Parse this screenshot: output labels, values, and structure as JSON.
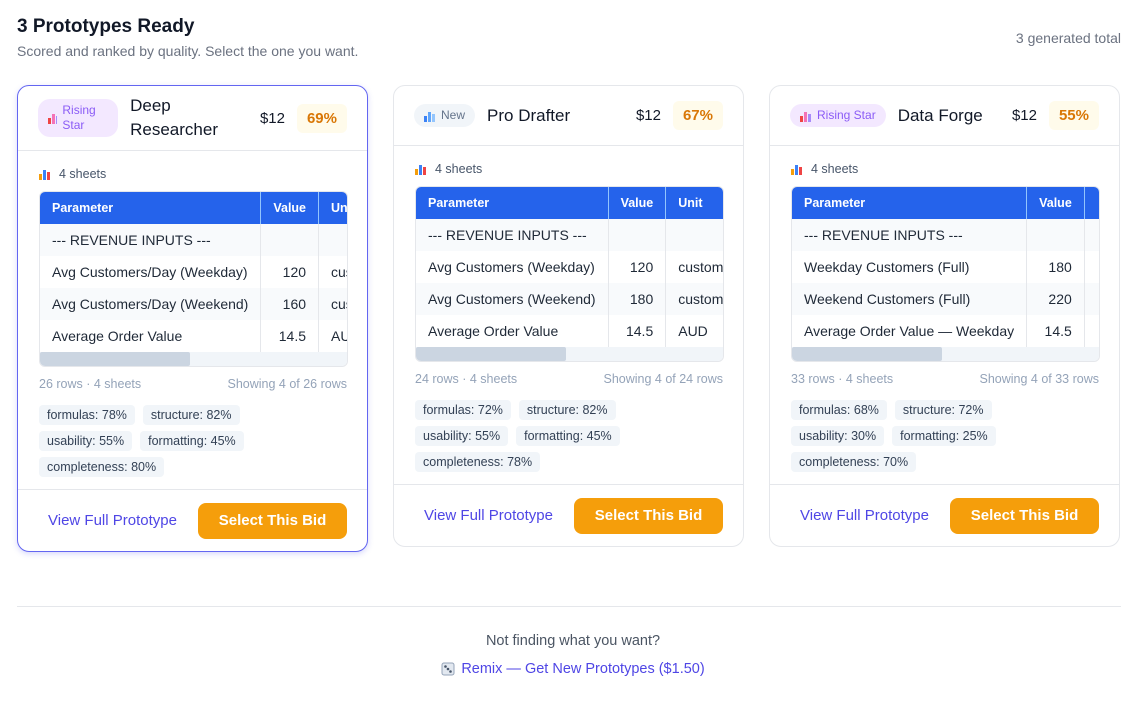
{
  "header": {
    "title": "3 Prototypes Ready",
    "subtitle": "Scored and ranked by quality. Select the one you want.",
    "total": "3 generated total"
  },
  "cards": [
    {
      "badge": "Rising Star",
      "name": "Deep Researcher",
      "price": "$12",
      "score": "69%",
      "selected": true,
      "sheets": "4 sheets",
      "columns": [
        "Parameter",
        "Value",
        "Unit"
      ],
      "rows": [
        {
          "parameter": "--- REVENUE INPUTS ---"
        },
        {
          "parameter": "Avg Customers/Day (Weekday)",
          "value": 120,
          "unit": "customers"
        },
        {
          "parameter": "Avg Customers/Day (Weekend)",
          "value": 160,
          "unit": "customers"
        },
        {
          "parameter": "Average Order Value",
          "value": 14.5,
          "unit": "AUD"
        }
      ],
      "meta": "26 rows · 4 sheets",
      "showing": "Showing 4 of 26 rows",
      "tags": [
        "formulas: 78%",
        "structure: 82%",
        "usability: 55%",
        "formatting: 45%",
        "completeness: 80%"
      ],
      "view": "View Full Prototype",
      "select": "Select This Bid"
    },
    {
      "badge": "New",
      "name": "Pro Drafter",
      "price": "$12",
      "score": "67%",
      "selected": false,
      "sheets": "4 sheets",
      "columns": [
        "Parameter",
        "Value",
        "Unit"
      ],
      "rows": [
        {
          "parameter": "--- REVENUE INPUTS ---"
        },
        {
          "parameter": "Avg Customers (Weekday)",
          "value": 120,
          "unit": "customers"
        },
        {
          "parameter": "Avg Customers (Weekend)",
          "value": 180,
          "unit": "customers"
        },
        {
          "parameter": "Average Order Value",
          "value": 14.5,
          "unit": "AUD"
        }
      ],
      "meta": "24 rows · 4 sheets",
      "showing": "Showing 4 of 24 rows",
      "tags": [
        "formulas: 72%",
        "structure: 82%",
        "usability: 55%",
        "formatting: 45%",
        "completeness: 78%"
      ],
      "view": "View Full Prototype",
      "select": "Select This Bid"
    },
    {
      "badge": "Rising Star",
      "name": "Data Forge",
      "price": "$12",
      "score": "55%",
      "selected": false,
      "sheets": "4 sheets",
      "columns": [
        "Parameter",
        "Value"
      ],
      "rows": [
        {
          "parameter": "--- REVENUE INPUTS ---"
        },
        {
          "parameter": "Weekday Customers (Full)",
          "value": 180
        },
        {
          "parameter": "Weekend Customers (Full)",
          "value": 220
        },
        {
          "parameter": "Average Order Value — Weekday",
          "value": 14.5
        }
      ],
      "meta": "33 rows · 4 sheets",
      "showing": "Showing 4 of 33 rows",
      "tags": [
        "formulas: 68%",
        "structure: 72%",
        "usability: 30%",
        "formatting: 25%",
        "completeness: 70%"
      ],
      "view": "View Full Prototype",
      "select": "Select This Bid"
    }
  ],
  "footer": {
    "question": "Not finding what you want?",
    "remix": "Remix — Get New Prototypes ($1.50)"
  }
}
